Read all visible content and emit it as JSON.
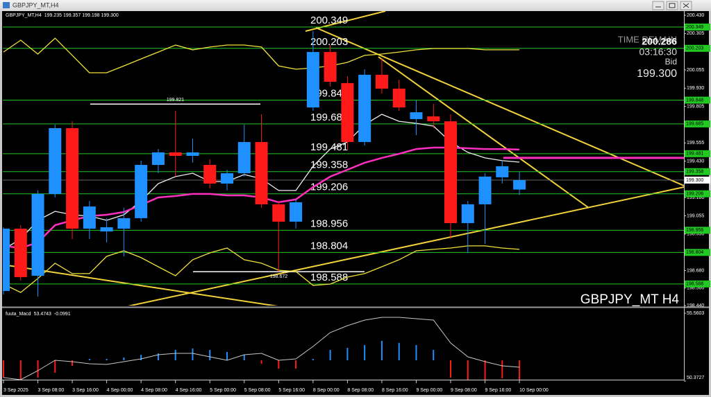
{
  "chart_data": [
    {
      "type": "candlestick",
      "title": "GBPJPY_MT,H4",
      "ohlc_header": "199.235 199.357 199.198 199.300",
      "categories": [
        "3 Sep 2025",
        null,
        "3 Sep 08:00",
        null,
        "3 Sep 16:00",
        null,
        "4 Sep 00:00",
        null,
        "4 Sep 08:00",
        null,
        "4 Sep 16:00",
        null,
        "5 Sep 00:00",
        null,
        "5 Sep 08:00",
        null,
        "5 Sep 16:00",
        null,
        "8 Sep 00:00",
        null,
        "8 Sep 08:00",
        null,
        "8 Sep 16:00",
        null,
        "9 Sep 00:00",
        null,
        "9 Sep 08:00",
        null,
        "9 Sep 16:00",
        null,
        "10 Sep 00:00"
      ],
      "open": [
        198.54,
        198.967,
        198.644,
        199.205,
        199.656,
        198.967,
        198.948,
        198.967,
        199.039,
        199.404,
        199.49,
        199.466,
        199.404,
        199.276,
        199.347,
        199.561,
        199.134,
        199.015,
        199.798,
        200.178,
        199.965,
        199.561,
        200.022,
        199.927,
        199.718,
        199.737,
        199.703,
        199.005,
        199.134,
        199.319,
        199.235
      ],
      "high": [
        198.977,
        198.991,
        199.229,
        199.68,
        199.703,
        199.157,
        199.039,
        199.11,
        199.433,
        199.513,
        199.775,
        199.585,
        199.442,
        199.371,
        199.68,
        199.751,
        199.157,
        199.167,
        200.321,
        200.226,
        200.012,
        200.06,
        200.131,
        199.988,
        199.846,
        199.822,
        199.751,
        199.157,
        199.347,
        199.433,
        199.357
      ],
      "low": [
        198.516,
        198.611,
        198.502,
        199.181,
        198.896,
        198.896,
        198.872,
        198.777,
        199.015,
        199.347,
        199.324,
        199.419,
        199.243,
        199.229,
        199.324,
        199.11,
        198.673,
        198.967,
        199.775,
        199.941,
        199.513,
        199.537,
        199.893,
        199.775,
        199.608,
        199.656,
        198.896,
        198.801,
        198.863,
        199.276,
        199.198
      ],
      "close": [
        198.967,
        198.635,
        199.205,
        199.656,
        198.967,
        199.119,
        198.977,
        199.039,
        199.404,
        199.49,
        199.466,
        199.49,
        199.276,
        199.347,
        199.561,
        199.134,
        199.015,
        199.148,
        200.178,
        199.974,
        199.561,
        200.022,
        199.927,
        199.798,
        199.765,
        199.703,
        199.005,
        199.134,
        199.324,
        199.395,
        199.3
      ],
      "up_color": "#1e90ff",
      "down_color": "#ff1a1a",
      "series": [
        {
          "color": "#f2e33a",
          "values": [
            200.178,
            200.259,
            200.164,
            200.273,
            200.155,
            200.036,
            200.036,
            200.083,
            200.131,
            200.178,
            200.226,
            200.193,
            200.212,
            200.226,
            200.226,
            200.212,
            200.083,
            200.06,
            200.069,
            200.083,
            200.107,
            200.155,
            200.164,
            200.178,
            200.193,
            200.202,
            200.202,
            200.202,
            200.193,
            200.193,
            200.193
          ]
        },
        {
          "color": "#f2e33a",
          "values": [
            198.587,
            198.53,
            198.625,
            198.73,
            198.659,
            198.659,
            198.777,
            198.815,
            198.768,
            198.706,
            198.644,
            198.754,
            198.801,
            198.834,
            198.754,
            198.73,
            198.682,
            198.673,
            198.578,
            198.587,
            198.635,
            198.659,
            198.706,
            198.754,
            198.815,
            198.825,
            198.834,
            198.849,
            198.849,
            198.834,
            198.825
          ]
        },
        {
          "color": "#f0f0f0",
          "values": [
            198.825,
            198.896,
            199.024,
            199.086,
            199.062,
            199.053,
            199.024,
            199.062,
            199.157,
            199.276,
            199.324,
            199.347,
            199.29,
            199.29,
            199.338,
            199.309,
            199.229,
            199.229,
            199.395,
            199.513,
            199.561,
            199.68,
            199.751,
            199.703,
            199.689,
            199.67,
            199.561,
            199.49,
            199.452,
            199.433,
            199.423
          ]
        },
        {
          "color": "#ff2fc0",
          "values": [
            198.849,
            198.834,
            198.872,
            198.991,
            199.024,
            199.053,
            199.062,
            199.081,
            199.129,
            199.181,
            199.191,
            199.205,
            199.205,
            199.195,
            199.195,
            199.181,
            199.148,
            199.167,
            199.252,
            199.324,
            199.371,
            199.419,
            199.452,
            199.48,
            199.513,
            199.523,
            199.523,
            199.518,
            199.513,
            199.513,
            199.509
          ]
        }
      ],
      "levels": [
        200.349,
        200.203,
        199.848,
        199.685,
        199.481,
        199.358,
        199.206,
        198.956,
        198.804,
        198.588
      ],
      "level_color": "#22c922",
      "hlines": [
        {
          "value": 199.452,
          "color": "#ff2fc0"
        }
      ],
      "annotations": [
        199.821,
        198.672
      ],
      "ylim": [
        198.44,
        200.43
      ],
      "yticks": [
        {
          "value": 200.43,
          "label": "200.430"
        },
        200.305,
        200.055,
        {
          "value": 199.93,
          "label": "199.930"
        },
        199.805,
        199.555,
        {
          "value": 199.43,
          "label": "199.430"
        },
        {
          "value": 199.18,
          "label": "199.180"
        },
        199.055,
        {
          "value": 198.93,
          "label": "198.930"
        },
        {
          "value": 198.68,
          "label": "198.680"
        },
        {
          "value": 198.56,
          "label": "198.560"
        },
        {
          "value": 198.44,
          "label": "198.440"
        }
      ],
      "info": {
        "time_remain_label": "TIME REMAIN",
        "price": 200.286,
        "time_remain": "03:16:30",
        "bid_label": "Bid",
        "bid": {
          "value": 199.3,
          "label": "199.300"
        }
      },
      "watermark": "GBPJPY_MT H4"
    },
    {
      "type": "bar",
      "title": "fuuta_Macd",
      "current": 53.4743,
      "series": [
        {
          "type": "bar",
          "axis": "y2",
          "color": "#1e90ff",
          "negative_color": "#ff1a1a",
          "values": [
            -0.0887,
            -0.0993,
            -0.0887,
            -0.0638,
            -0.0284,
            0.0071,
            0.0071,
            0.0142,
            0.0284,
            0.0355,
            0.0532,
            0.0603,
            0.0532,
            0.0426,
            0.0284,
            -0.0177,
            -0.0426,
            -0.0426,
            0.0071,
            0.0532,
            0.0638,
            0.078,
            0.0993,
            0.0887,
            0.078,
            0.0532,
            -0.0887,
            -0.0993,
            -0.0993,
            -0.0922,
            -0.0991
          ]
        },
        {
          "type": "line",
          "color": "#c8c8c8",
          "values": [
            50.638,
            50.479,
            51.167,
            51.961,
            51.855,
            51.697,
            51.644,
            51.855,
            52.067,
            52.385,
            52.491,
            52.491,
            52.226,
            51.961,
            52.385,
            52.491,
            51.961,
            52.067,
            53.02,
            54.078,
            54.608,
            55.031,
            55.243,
            55.243,
            55.137,
            55.031,
            53.285,
            52.226,
            51.855,
            51.538,
            51.432
          ]
        }
      ],
      "ylim": [
        50.3727,
        55.5603
      ],
      "yticks": [
        55.5603,
        50.3727
      ],
      "y2lim": [
        -0.1062,
        0.2411
      ]
    }
  ]
}
